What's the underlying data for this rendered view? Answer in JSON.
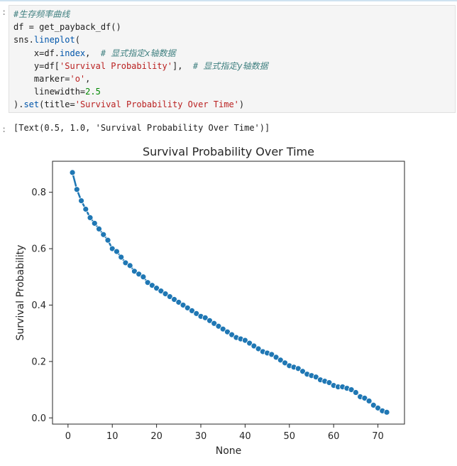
{
  "notebook": {
    "prompt_glyph": ":",
    "code_lines": [
      [
        {
          "t": "#生存频率曲线",
          "c": "cm"
        }
      ],
      [
        {
          "t": "df = get_payback_df()",
          "c": ""
        }
      ],
      [
        {
          "t": "sns.",
          "c": ""
        },
        {
          "t": "lineplot",
          "c": "fn"
        },
        {
          "t": "(",
          "c": ""
        }
      ],
      [
        {
          "t": "    x=df.",
          "c": ""
        },
        {
          "t": "index",
          "c": "fn"
        },
        {
          "t": ",  ",
          "c": ""
        },
        {
          "t": "# 显式指定x轴数据",
          "c": "cm"
        }
      ],
      [
        {
          "t": "    y=df[",
          "c": ""
        },
        {
          "t": "'Survival Probability'",
          "c": "st"
        },
        {
          "t": "],  ",
          "c": ""
        },
        {
          "t": "# 显式指定y轴数据",
          "c": "cm"
        }
      ],
      [
        {
          "t": "    marker=",
          "c": ""
        },
        {
          "t": "'o'",
          "c": "st"
        },
        {
          "t": ",",
          "c": ""
        }
      ],
      [
        {
          "t": "    linewidth=",
          "c": ""
        },
        {
          "t": "2.5",
          "c": "nu"
        }
      ],
      [
        {
          "t": ").",
          "c": ""
        },
        {
          "t": "set",
          "c": "fn"
        },
        {
          "t": "(title=",
          "c": ""
        },
        {
          "t": "'Survival Probability Over Time'",
          "c": "st"
        },
        {
          "t": ")",
          "c": ""
        }
      ]
    ],
    "output_text": "[Text(0.5, 1.0, 'Survival Probability Over Time')]"
  },
  "chart_data": {
    "type": "line",
    "title": "Survival Probability Over Time",
    "xlabel": "None",
    "ylabel": "Survival Probability",
    "xlim": [
      -3.5,
      76
    ],
    "ylim": [
      -0.022,
      0.91
    ],
    "xticks": [
      0,
      10,
      20,
      30,
      40,
      50,
      60,
      70
    ],
    "yticks": [
      0.0,
      0.2,
      0.4,
      0.6,
      0.8
    ],
    "ytick_labels": [
      "0.0",
      "0.2",
      "0.4",
      "0.6",
      "0.8"
    ],
    "grid": false,
    "marker": "o",
    "color": "#1f77b4",
    "series": [
      {
        "x": [
          1,
          2,
          3,
          4,
          5,
          6,
          7,
          8,
          9,
          10,
          11,
          12,
          13,
          14,
          15,
          16,
          17,
          18,
          19,
          20,
          21,
          22,
          23,
          24,
          25,
          26,
          27,
          28,
          29,
          30,
          31,
          32,
          33,
          34,
          35,
          36,
          37,
          38,
          39,
          40,
          41,
          42,
          43,
          44,
          45,
          46,
          47,
          48,
          49,
          50,
          51,
          52,
          53,
          54,
          55,
          56,
          57,
          58,
          59,
          60,
          61,
          62,
          63,
          64,
          65,
          66,
          67,
          68,
          69,
          70,
          71,
          72
        ],
        "values": [
          0.87,
          0.81,
          0.77,
          0.74,
          0.71,
          0.69,
          0.67,
          0.65,
          0.63,
          0.6,
          0.59,
          0.57,
          0.55,
          0.54,
          0.52,
          0.51,
          0.5,
          0.48,
          0.47,
          0.46,
          0.45,
          0.44,
          0.43,
          0.42,
          0.41,
          0.4,
          0.39,
          0.38,
          0.37,
          0.36,
          0.355,
          0.345,
          0.335,
          0.325,
          0.315,
          0.305,
          0.295,
          0.285,
          0.28,
          0.275,
          0.265,
          0.255,
          0.245,
          0.235,
          0.23,
          0.225,
          0.215,
          0.205,
          0.195,
          0.185,
          0.18,
          0.175,
          0.165,
          0.155,
          0.15,
          0.145,
          0.135,
          0.13,
          0.125,
          0.115,
          0.11,
          0.11,
          0.105,
          0.1,
          0.09,
          0.075,
          0.07,
          0.06,
          0.045,
          0.035,
          0.025,
          0.02
        ]
      }
    ]
  }
}
